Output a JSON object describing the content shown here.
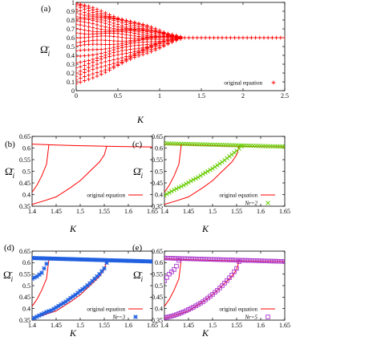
{
  "chart_data": [
    {
      "panel": "(a)",
      "type": "scatter",
      "xlabel": "K",
      "ylabel": "Ω̄ i",
      "xlim": [
        0,
        2.5
      ],
      "ylim": [
        0,
        1
      ],
      "xticks": [
        "0",
        "0.5",
        "1",
        "1.5",
        "2",
        "2.5"
      ],
      "yticks": [
        "0",
        "0.1",
        "0.2",
        "0.3",
        "0.4",
        "0.5",
        "0.6",
        "0.7",
        "0.8",
        "0.9",
        "1"
      ],
      "legend": "top-right",
      "series": [
        {
          "name": "original equation",
          "color": "#ff0000",
          "marker": "plus",
          "x_step": 0.05,
          "branches": [
            {
              "start": 0.99,
              "end": 0.6,
              "merge_K": 1.25
            },
            {
              "start": 0.97,
              "end": 0.6,
              "merge_K": 1.25
            },
            {
              "start": 0.95,
              "end": 0.6,
              "merge_K": 1.25
            },
            {
              "start": 0.92,
              "end": 0.6,
              "merge_K": 1.25
            },
            {
              "start": 0.89,
              "end": 0.6,
              "merge_K": 1.25
            },
            {
              "start": 0.85,
              "end": 0.6,
              "merge_K": 1.25
            },
            {
              "start": 0.82,
              "end": 0.6,
              "merge_K": 1.25
            },
            {
              "start": 0.78,
              "end": 0.6,
              "merge_K": 1.25
            },
            {
              "start": 0.74,
              "end": 0.6,
              "merge_K": 1.25
            },
            {
              "start": 0.7,
              "end": 0.6,
              "merge_K": 1.25
            },
            {
              "start": 0.66,
              "end": 0.6,
              "merge_K": 1.25
            },
            {
              "start": 0.61,
              "end": 0.6,
              "merge_K": 1.25
            },
            {
              "start": 0.55,
              "end": 0.6,
              "merge_K": 1.25
            },
            {
              "start": 0.5,
              "end": 0.6,
              "merge_K": 1.25
            },
            {
              "start": 0.44,
              "end": 0.6,
              "merge_K": 1.25
            },
            {
              "start": 0.38,
              "end": 0.6,
              "merge_K": 1.25
            },
            {
              "start": 0.32,
              "end": 0.6,
              "merge_K": 1.25
            },
            {
              "start": 0.27,
              "end": 0.6,
              "merge_K": 1.25
            },
            {
              "start": 0.21,
              "end": 0.6,
              "merge_K": 1.25
            },
            {
              "start": 0.16,
              "end": 0.6,
              "merge_K": 1.25
            },
            {
              "start": 0.11,
              "end": 0.6,
              "merge_K": 1.25
            },
            {
              "start": 0.07,
              "end": 0.6,
              "merge_K": 1.25
            }
          ],
          "merged": {
            "y": 0.6,
            "x_from": 1.25,
            "x_to": 2.5
          }
        }
      ]
    },
    {
      "panel": "(b)",
      "type": "line",
      "xlabel": "K",
      "ylabel": "Ω̄ i",
      "xlim": [
        1.4,
        1.65
      ],
      "ylim": [
        0.35,
        0.65
      ],
      "xticks": [
        "1.4",
        "1.45",
        "1.5",
        "1.55",
        "1.6",
        "1.65"
      ],
      "yticks": [
        "0.35",
        "0.4",
        "0.45",
        "0.5",
        "0.55",
        "0.6",
        "0.65"
      ],
      "legend": "bottom-right",
      "series": [
        {
          "name": "original equation",
          "color": "#ff0000",
          "lines": [
            {
              "x": [
                1.4,
                1.45,
                1.5,
                1.55,
                1.6,
                1.65
              ],
              "y": [
                0.617,
                0.613,
                0.61,
                0.608,
                0.606,
                0.605
              ]
            },
            {
              "x": [
                1.4,
                1.41,
                1.42,
                1.43,
                1.435
              ],
              "y": [
                0.41,
                0.44,
                0.48,
                0.53,
                0.615
              ]
            },
            {
              "x": [
                1.4,
                1.42,
                1.45,
                1.48,
                1.5,
                1.52,
                1.54,
                1.55,
                1.555
              ],
              "y": [
                0.358,
                0.37,
                0.39,
                0.43,
                0.46,
                0.5,
                0.54,
                0.57,
                0.607
              ]
            }
          ]
        }
      ]
    },
    {
      "panel": "(c)",
      "type": "line",
      "xlabel": "K",
      "ylabel": "Ω̄ i",
      "xlim": [
        1.4,
        1.65
      ],
      "ylim": [
        0.35,
        0.65
      ],
      "xticks": [
        "1.4",
        "1.45",
        "1.5",
        "1.55",
        "1.6",
        "1.65"
      ],
      "yticks": [
        "0.35",
        "0.4",
        "0.45",
        "0.5",
        "0.55",
        "0.6",
        "0.65"
      ],
      "legend": "bottom-right",
      "series": [
        {
          "name": "original equation",
          "color": "#ff0000",
          "style": "line"
        },
        {
          "name": "Nr=2",
          "color": "#66cc00",
          "marker": "x",
          "x_step": 0.005,
          "lines": [
            {
              "x": [
                1.4,
                1.65
              ],
              "y": [
                0.62,
                0.606
              ]
            },
            {
              "x": [
                1.4,
                1.41,
                1.42,
                1.43,
                1.44,
                1.45,
                1.46,
                1.47,
                1.48,
                1.49,
                1.5,
                1.51,
                1.52,
                1.53,
                1.54,
                1.55,
                1.56
              ],
              "y": [
                0.396,
                0.408,
                0.42,
                0.43,
                0.44,
                0.452,
                0.464,
                0.474,
                0.488,
                0.5,
                0.512,
                0.526,
                0.54,
                0.556,
                0.572,
                0.588,
                0.607
              ]
            }
          ]
        }
      ]
    },
    {
      "panel": "(d)",
      "type": "line",
      "xlabel": "K",
      "ylabel": "Ω̄ i",
      "xlim": [
        1.4,
        1.65
      ],
      "ylim": [
        0.35,
        0.65
      ],
      "xticks": [
        "1.4",
        "1.45",
        "1.5",
        "1.55",
        "1.6",
        "1.65"
      ],
      "yticks": [
        "0.35",
        "0.4",
        "0.45",
        "0.5",
        "0.55",
        "0.6",
        "0.65"
      ],
      "legend": "bottom-right",
      "series": [
        {
          "name": "original equation",
          "color": "#ff0000",
          "style": "line"
        },
        {
          "name": "Nr=3",
          "color": "#1f5fe0",
          "marker": "star",
          "x_step": 0.005,
          "lines": [
            {
              "x": [
                1.4,
                1.65
              ],
              "y": [
                0.62,
                0.605
              ]
            },
            {
              "x": [
                1.4,
                1.405,
                1.41,
                1.415,
                1.42,
                1.425,
                1.43
              ],
              "y": [
                0.53,
                0.535,
                0.54,
                0.548,
                0.556,
                0.575,
                0.595
              ]
            },
            {
              "x": [
                1.4,
                1.41,
                1.42,
                1.43,
                1.44,
                1.45,
                1.46,
                1.47,
                1.48,
                1.49,
                1.5,
                1.51,
                1.52,
                1.53,
                1.54,
                1.55,
                1.555
              ],
              "y": [
                0.355,
                0.365,
                0.375,
                0.385,
                0.392,
                0.405,
                0.418,
                0.43,
                0.446,
                0.46,
                0.477,
                0.492,
                0.51,
                0.53,
                0.55,
                0.575,
                0.6
              ]
            }
          ]
        }
      ]
    },
    {
      "panel": "(e)",
      "type": "line",
      "xlabel": "K",
      "ylabel": "Ω̄ i",
      "xlim": [
        1.4,
        1.65
      ],
      "ylim": [
        0.35,
        0.65
      ],
      "xticks": [
        "1.4",
        "1.45",
        "1.5",
        "1.55",
        "1.6",
        "1.65"
      ],
      "yticks": [
        "0.35",
        "0.4",
        "0.45",
        "0.5",
        "0.55",
        "0.6",
        "0.65"
      ],
      "legend": "bottom-right",
      "series": [
        {
          "name": "original equation",
          "color": "#ff0000",
          "style": "line"
        },
        {
          "name": "Nr=5",
          "color": "#aa33cc",
          "marker": "square",
          "x_step": 0.005,
          "lines": [
            {
              "x": [
                1.4,
                1.65
              ],
              "y": [
                0.62,
                0.605
              ]
            },
            {
              "x": [
                1.4,
                1.405,
                1.41,
                1.415,
                1.42,
                1.425,
                1.43
              ],
              "y": [
                0.52,
                0.535,
                0.55,
                0.56,
                0.57,
                0.585,
                0.61
              ]
            },
            {
              "x": [
                1.4,
                1.41,
                1.42,
                1.43,
                1.44,
                1.45,
                1.46,
                1.47,
                1.48,
                1.49,
                1.5,
                1.51,
                1.52,
                1.53,
                1.54,
                1.55,
                1.555
              ],
              "y": [
                0.36,
                0.365,
                0.37,
                0.378,
                0.386,
                0.396,
                0.406,
                0.418,
                0.43,
                0.446,
                0.462,
                0.48,
                0.5,
                0.522,
                0.546,
                0.575,
                0.604
              ]
            }
          ]
        }
      ]
    }
  ]
}
